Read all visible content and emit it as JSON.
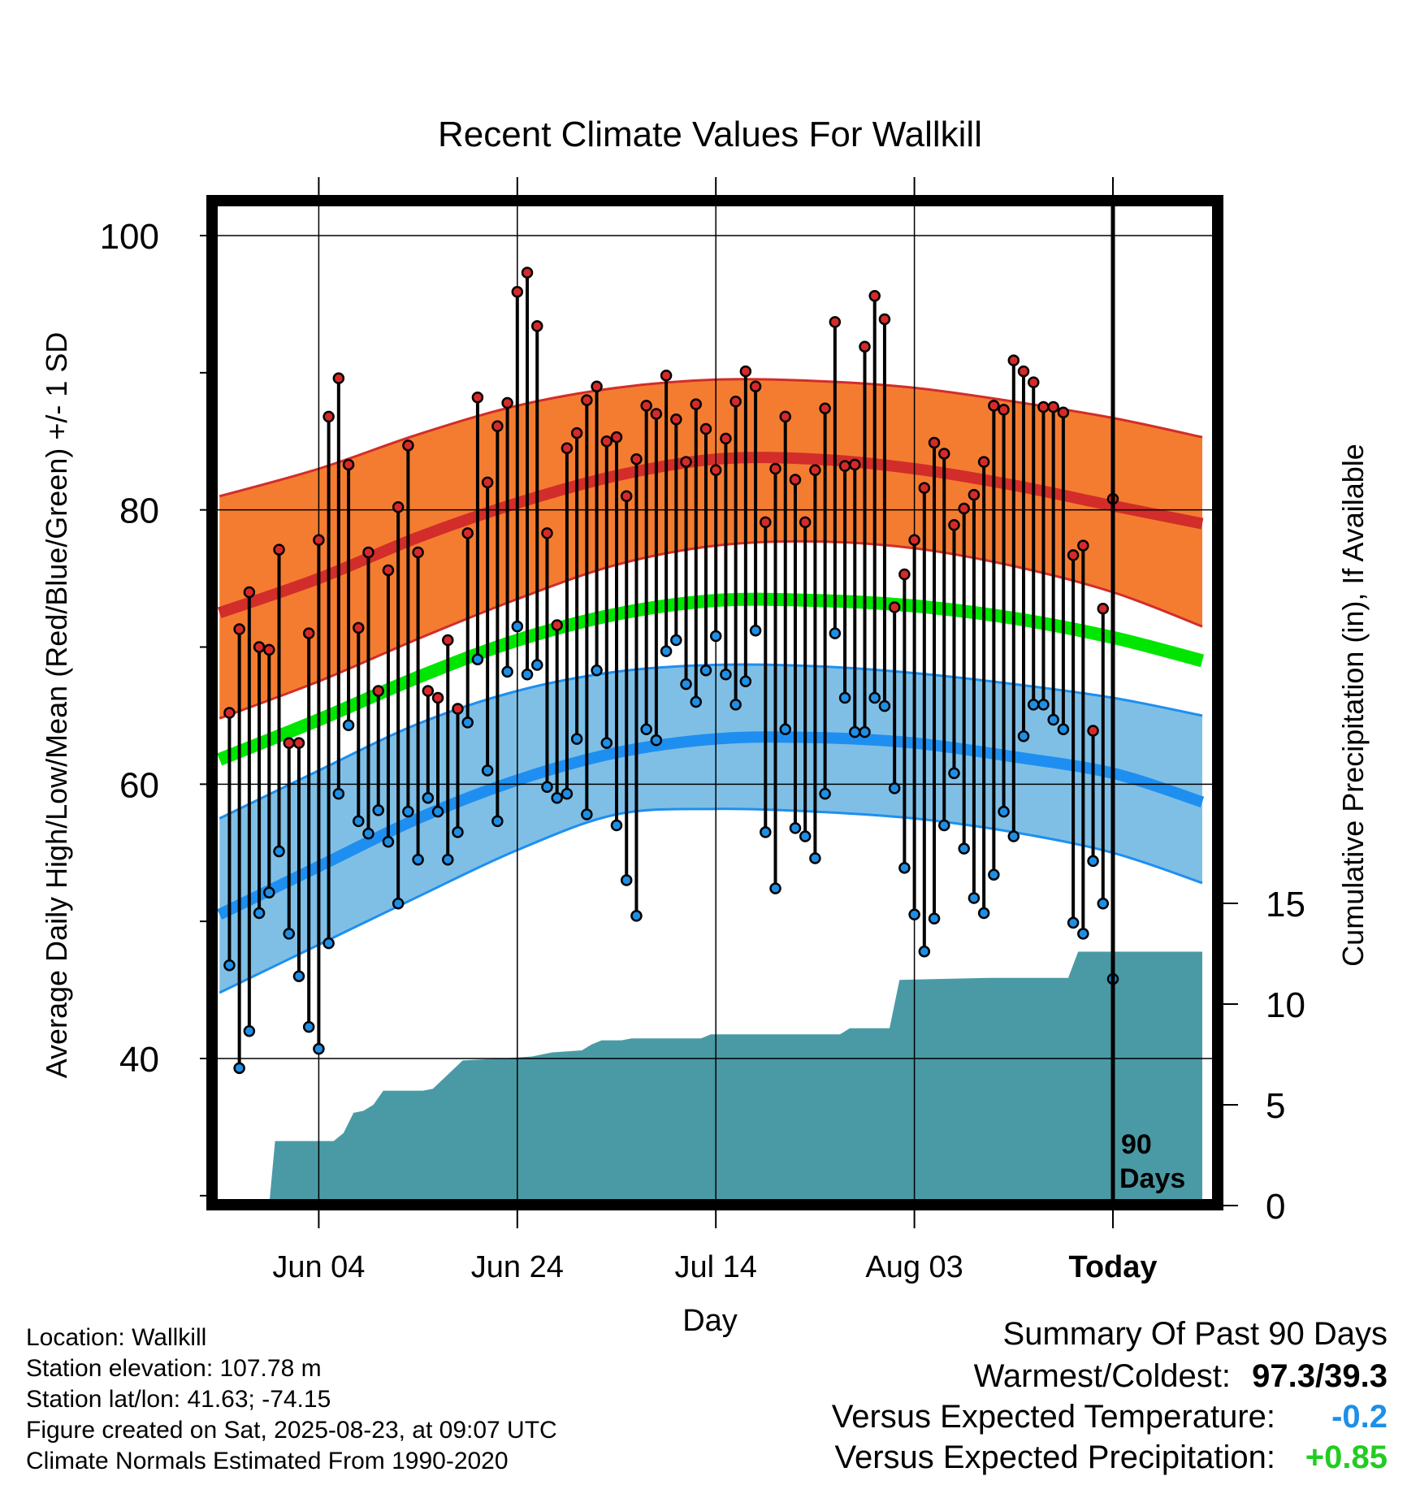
{
  "title": "Recent Climate Values For Wallkill",
  "ylabel": "Average Daily High/Low/Mean (Red/Blue/Green) +/- 1 SD",
  "y2label": "Cumulative Precipitation (in), If Available",
  "xlabel": "Day",
  "days_label_line1": "90",
  "days_label_line2": "Days",
  "colors": {
    "high_band": "#f47c30",
    "high_line": "#d22d2a",
    "low_band": "#7fbfe6",
    "low_line": "#1e8ff0",
    "mean_line": "#00e600",
    "precip": "#4a9aa5",
    "high_dot": "#d62a2a",
    "low_dot": "#1e8fe6",
    "anomaly_temp": "#1e8fe6",
    "anomaly_precip": "#22cc22"
  },
  "chart_data": {
    "type": "line",
    "x_range_days": [
      -90,
      9
    ],
    "y_range": [
      30,
      104
    ],
    "y_ticks": [
      40,
      60,
      80,
      100
    ],
    "y2_range": [
      0,
      50
    ],
    "y2_ticks": [
      0,
      5,
      10,
      15
    ],
    "x_ticks": [
      {
        "day": -80,
        "label": "Jun 04"
      },
      {
        "day": -60,
        "label": "Jun 24"
      },
      {
        "day": -40,
        "label": "Jul 14"
      },
      {
        "day": -20,
        "label": "Aug 03"
      },
      {
        "day": 0,
        "label": "Today"
      }
    ],
    "normals_days": [
      -90,
      -80,
      -70,
      -60,
      -50,
      -40,
      -30,
      -20,
      -10,
      0,
      9
    ],
    "normal_high": [
      72.5,
      75.0,
      78.0,
      80.5,
      82.5,
      83.7,
      83.7,
      83.0,
      81.8,
      80.3,
      79.0
    ],
    "normal_high_sd_upper": [
      81.0,
      83.0,
      85.5,
      87.6,
      88.9,
      89.5,
      89.4,
      88.9,
      87.9,
      86.7,
      85.3
    ],
    "normal_high_sd_lower": [
      64.8,
      67.5,
      70.6,
      73.5,
      76.0,
      77.4,
      77.7,
      77.2,
      75.9,
      74.0,
      71.5
    ],
    "normal_mean": [
      61.8,
      64.7,
      67.8,
      70.5,
      72.4,
      73.4,
      73.4,
      73.0,
      72.1,
      70.7,
      69.0
    ],
    "normal_low": [
      50.5,
      54.0,
      57.5,
      60.3,
      62.3,
      63.3,
      63.4,
      63.0,
      62.0,
      60.8,
      58.7
    ],
    "normal_low_sd_upper": [
      57.5,
      61.0,
      64.4,
      66.8,
      68.2,
      68.7,
      68.6,
      68.1,
      67.3,
      66.3,
      65.0
    ],
    "normal_low_sd_lower": [
      44.8,
      48.3,
      51.8,
      55.2,
      57.8,
      58.2,
      58.0,
      57.5,
      56.5,
      55.0,
      52.8
    ],
    "daily_high": [
      65.2,
      71.3,
      74.0,
      70.0,
      69.8,
      77.1,
      63.0,
      63.0,
      71.0,
      77.8,
      86.8,
      89.6,
      83.3,
      71.4,
      76.9,
      66.8,
      75.6,
      80.2,
      84.7,
      76.9,
      66.8,
      66.3,
      70.5,
      65.5,
      78.3,
      88.2,
      82.0,
      86.1,
      87.8,
      95.9,
      97.3,
      93.4,
      78.3,
      71.6,
      84.5,
      85.6,
      88.0,
      89.0,
      85.0,
      85.3,
      81.0,
      83.7,
      87.6,
      87.0,
      89.8,
      86.6,
      83.5,
      87.7,
      85.9,
      82.9,
      85.2,
      87.9,
      90.1,
      89.0,
      79.1,
      83.0,
      86.8,
      82.2,
      79.1,
      82.9,
      87.4,
      93.7,
      83.2,
      83.3,
      91.9,
      95.6,
      93.9,
      72.9,
      75.3,
      77.8,
      81.6,
      84.9,
      84.1,
      78.9,
      80.1,
      81.1,
      83.5,
      87.6,
      87.3,
      90.9,
      90.1,
      89.3,
      87.5,
      87.5,
      87.1,
      76.7,
      77.4,
      63.9,
      72.8,
      80.8
    ],
    "daily_low": [
      46.8,
      39.3,
      42.0,
      50.6,
      52.1,
      55.1,
      49.1,
      46.0,
      42.3,
      40.7,
      48.4,
      59.3,
      64.3,
      57.3,
      56.4,
      58.1,
      55.8,
      51.3,
      58.0,
      54.5,
      59.0,
      58.0,
      54.5,
      56.5,
      64.5,
      69.1,
      61.0,
      57.3,
      68.2,
      71.5,
      68.0,
      68.7,
      59.8,
      59.0,
      59.3,
      63.3,
      57.8,
      68.3,
      63.0,
      57.0,
      53.0,
      50.4,
      64.0,
      63.2,
      69.7,
      70.5,
      67.3,
      66.0,
      68.3,
      70.8,
      68.0,
      65.8,
      67.5,
      71.2,
      56.5,
      52.4,
      64.0,
      56.8,
      56.2,
      54.6,
      59.3,
      71.0,
      66.3,
      63.8,
      63.8,
      66.3,
      65.7,
      59.7,
      53.9,
      50.5,
      47.8,
      50.2,
      57.0,
      60.8,
      55.3,
      51.7,
      50.6,
      53.4,
      58.0,
      56.2,
      63.5,
      65.8,
      65.8,
      64.7,
      64.0,
      49.9,
      49.1,
      54.4,
      51.3,
      45.8
    ],
    "precip_cumulative": [
      [
        -90,
        0
      ],
      [
        -85,
        0
      ],
      [
        -84.4,
        3.2
      ],
      [
        -78.5,
        3.2
      ],
      [
        -77.5,
        3.6
      ],
      [
        -76.5,
        4.6
      ],
      [
        -75.5,
        4.7
      ],
      [
        -74.5,
        5.0
      ],
      [
        -73.5,
        5.7
      ],
      [
        -69.5,
        5.7
      ],
      [
        -68.5,
        5.8
      ],
      [
        -65.5,
        7.2
      ],
      [
        -61.5,
        7.3
      ],
      [
        -58.5,
        7.4
      ],
      [
        -56.5,
        7.6
      ],
      [
        -53.5,
        7.7
      ],
      [
        -52.5,
        8.0
      ],
      [
        -51.5,
        8.2
      ],
      [
        -49.5,
        8.2
      ],
      [
        -48.5,
        8.3
      ],
      [
        -41.5,
        8.3
      ],
      [
        -40.5,
        8.5
      ],
      [
        -27.5,
        8.5
      ],
      [
        -26.5,
        8.8
      ],
      [
        -22.5,
        8.8
      ],
      [
        -21.5,
        11.2
      ],
      [
        -12.5,
        11.3
      ],
      [
        -4.5,
        11.3
      ],
      [
        -3.5,
        12.6
      ],
      [
        9,
        12.6
      ]
    ]
  },
  "info": {
    "location": "Location: Wallkill",
    "elevation": "Station elevation: 107.78 m",
    "latlon": "Station lat/lon: 41.63; -74.15",
    "created": "Figure created on Sat, 2025-08-23, at 09:07 UTC",
    "normals": "Climate Normals Estimated From 1990-2020"
  },
  "summary": {
    "title": "Summary Of Past 90 Days",
    "warmest_coldest_label": "Warmest/Coldest:",
    "warmest_coldest_value": "97.3/39.3",
    "temp_label": "Versus Expected Temperature:",
    "temp_value": "-0.2",
    "precip_label": "Versus Expected Precipitation:",
    "precip_value": "+0.85"
  }
}
